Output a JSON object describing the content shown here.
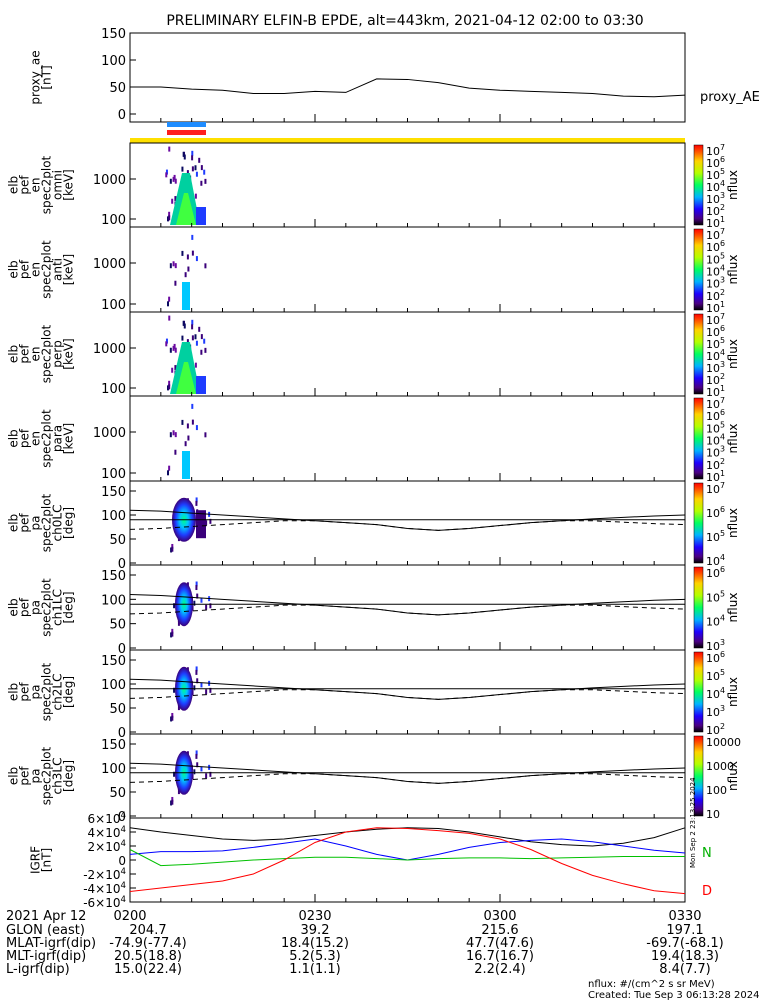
{
  "title": "PRELIMINARY ELFIN-B EPDE, alt=443km, 2021-04-12 02:00 to 03:30",
  "colors": {
    "yellow": "#ffe000",
    "blue": "#1e8cff",
    "red": "#ff1e1e"
  },
  "chart_data": [
    {
      "type": "line",
      "panel": "proxy_ae",
      "ylabel": [
        "proxy_ae",
        "[nT]"
      ],
      "legend": "proxy_AE",
      "yticks": [
        "150",
        "100",
        "50",
        "0"
      ],
      "ylim": [
        0,
        150
      ],
      "x_minutes": [
        0,
        5,
        10,
        15,
        20,
        25,
        30,
        35,
        40,
        45,
        50,
        55,
        60,
        65,
        70,
        75,
        80,
        85,
        90
      ],
      "values": [
        50,
        50,
        46,
        44,
        38,
        38,
        42,
        40,
        65,
        64,
        58,
        48,
        44,
        42,
        40,
        38,
        33,
        32,
        35
      ]
    },
    {
      "type": "heatmap",
      "panel": "omni",
      "ylabel": [
        "elb",
        "pef",
        "en",
        "spec2plot",
        "omni",
        "[keV]"
      ],
      "yticks": [
        "1000",
        "100"
      ],
      "colorbar": {
        "label": "nflux",
        "ticks": [
          "10^7",
          "10^6",
          "10^5",
          "10^4",
          "10^3",
          "10^2",
          "10^1"
        ]
      }
    },
    {
      "type": "heatmap",
      "panel": "anti",
      "ylabel": [
        "elb",
        "pef",
        "en",
        "spec2plot",
        "anti",
        "[keV]"
      ],
      "yticks": [
        "1000",
        "100"
      ],
      "colorbar": {
        "label": "nflux",
        "ticks": [
          "10^7",
          "10^6",
          "10^5",
          "10^4",
          "10^3",
          "10^2",
          "10^1"
        ]
      }
    },
    {
      "type": "heatmap",
      "panel": "perp",
      "ylabel": [
        "elb",
        "pef",
        "en",
        "spec2plot",
        "perp",
        "[keV]"
      ],
      "yticks": [
        "1000",
        "100"
      ],
      "colorbar": {
        "label": "nflux",
        "ticks": [
          "10^7",
          "10^6",
          "10^5",
          "10^4",
          "10^3",
          "10^2",
          "10^1"
        ]
      }
    },
    {
      "type": "heatmap",
      "panel": "para",
      "ylabel": [
        "elb",
        "pef",
        "en",
        "spec2plot",
        "para",
        "[keV]"
      ],
      "yticks": [
        "1000",
        "100"
      ],
      "colorbar": {
        "label": "nflux",
        "ticks": [
          "10^7",
          "10^6",
          "10^5",
          "10^4",
          "10^3",
          "10^2",
          "10^1"
        ]
      }
    },
    {
      "type": "heatmap",
      "panel": "ch0LC",
      "ylabel": [
        "elb",
        "pef",
        "pa",
        "spec2plot",
        "ch0LC",
        "[deg]"
      ],
      "yticks": [
        "150",
        "100",
        "50",
        "0"
      ],
      "colorbar": {
        "label": "nflux",
        "ticks": [
          "10^7",
          "10^6",
          "10^5",
          "10^4"
        ]
      }
    },
    {
      "type": "heatmap",
      "panel": "ch1LC",
      "ylabel": [
        "elb",
        "pef",
        "pa",
        "spec2plot",
        "ch1LC",
        "[deg]"
      ],
      "yticks": [
        "150",
        "100",
        "50",
        "0"
      ],
      "colorbar": {
        "label": "nflux",
        "ticks": [
          "10^6",
          "10^5",
          "10^4",
          "10^3"
        ]
      }
    },
    {
      "type": "heatmap",
      "panel": "ch2LC",
      "ylabel": [
        "elb",
        "pef",
        "pa",
        "spec2plot",
        "ch2LC",
        "[deg]"
      ],
      "yticks": [
        "150",
        "100",
        "50",
        "0"
      ],
      "colorbar": {
        "label": "nflux",
        "ticks": [
          "10^6",
          "10^5",
          "10^4",
          "10^3",
          "10^2"
        ]
      }
    },
    {
      "type": "heatmap",
      "panel": "ch3LC",
      "ylabel": [
        "elb",
        "pef",
        "pa",
        "spec2plot",
        "ch3LC",
        "[deg]"
      ],
      "yticks": [
        "150",
        "100",
        "50",
        "0"
      ],
      "colorbar": {
        "label": "nflux",
        "ticks": [
          "10000",
          "1000",
          "100",
          "10"
        ]
      }
    },
    {
      "type": "line",
      "panel": "IGRF",
      "ylabel": [
        "IGRF",
        "[nT]"
      ],
      "yticks": [
        "6×10^4",
        "4×10^4",
        "2×10^4",
        "0",
        "-2×10^4",
        "-4×10^4",
        "-6×10^4"
      ],
      "ylim": [
        -60000,
        60000
      ],
      "series_labels": [
        "N",
        "D"
      ],
      "x_minutes": [
        0,
        5,
        10,
        15,
        20,
        25,
        30,
        35,
        40,
        45,
        50,
        55,
        60,
        65,
        70,
        75,
        80,
        85,
        90
      ],
      "series": [
        {
          "color": "#000000",
          "values": [
            46000,
            40000,
            35000,
            30000,
            28000,
            30000,
            35000,
            40000,
            44000,
            46000,
            45000,
            40000,
            33000,
            26000,
            22000,
            20000,
            24000,
            32000,
            46000
          ]
        },
        {
          "color": "#0000ff",
          "values": [
            8000,
            12000,
            12000,
            13000,
            18000,
            24000,
            30000,
            20000,
            8000,
            0,
            8000,
            18000,
            25000,
            28000,
            30000,
            26000,
            20000,
            14000,
            10000
          ]
        },
        {
          "color": "#00c000",
          "values": [
            15000,
            -8000,
            -6000,
            -3000,
            0,
            2000,
            4000,
            4000,
            2000,
            0,
            2000,
            3000,
            3000,
            2000,
            3000,
            4000,
            5000,
            5000,
            5000
          ]
        },
        {
          "color": "#ff0000",
          "values": [
            -45000,
            -40000,
            -35000,
            -30000,
            -20000,
            0,
            25000,
            40000,
            46000,
            45000,
            42000,
            38000,
            30000,
            15000,
            -5000,
            -22000,
            -34000,
            -44000,
            -48000
          ]
        }
      ]
    }
  ],
  "time_axis": {
    "labels": [
      "2021 Apr 12",
      "0200",
      "0230",
      "0300",
      "0330"
    ],
    "rows": [
      {
        "label": "GLON (east)",
        "values": [
          "204.7",
          "39.2",
          "215.6",
          "197.1"
        ]
      },
      {
        "label": "MLAT-igrf(dip)",
        "values": [
          "-74.9(-77.4)",
          "18.4(15.2)",
          "47.7(47.6)",
          "-69.7(-68.1)"
        ]
      },
      {
        "label": "MLT-igrf(dip)",
        "values": [
          "20.5(18.8)",
          "5.2(5.3)",
          "16.7(16.7)",
          "19.4(18.3)"
        ]
      },
      {
        "label": "L-igrf(dip)",
        "values": [
          "15.0(22.4)",
          "1.1(1.1)",
          "2.2(2.4)",
          "8.4(7.7)"
        ]
      }
    ]
  },
  "footer": {
    "units": "nflux: #/(cm^2 s sr MeV)",
    "created": "Created: Tue Sep  3 06:13:28 2024"
  },
  "side_stamp": "Mon Sep  2 23:13:25 2024"
}
